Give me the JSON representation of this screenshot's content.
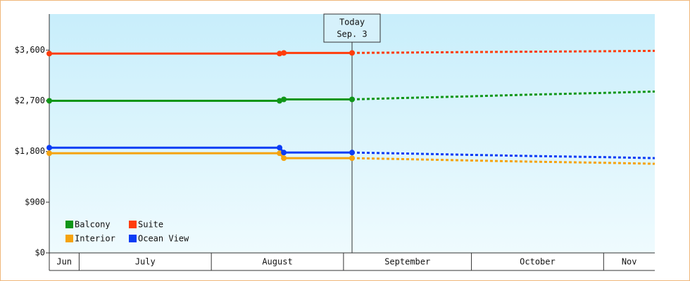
{
  "chart_data": {
    "type": "line",
    "x": [
      "Jun 24",
      "Aug 17",
      "Aug 18",
      "Sep 3"
    ],
    "forecast_x": [
      "Sep 3",
      "Sep 15",
      "Oct 1",
      "Oct 15",
      "Nov 1",
      "Nov 13"
    ],
    "xlim": [
      "Jun 24",
      "Nov 13"
    ],
    "months": [
      "Jun",
      "July",
      "August",
      "September",
      "October",
      "Nov"
    ],
    "ylim": [
      0,
      4240
    ],
    "yticks": [
      {
        "value": 0,
        "label": "$0"
      },
      {
        "value": 900,
        "label": "$900"
      },
      {
        "value": 1800,
        "label": "$1,800"
      },
      {
        "value": 2700,
        "label": "$2,700"
      },
      {
        "value": 3600,
        "label": "$3,600"
      }
    ],
    "annotation": {
      "lines": [
        "Today",
        "Sep. 3"
      ],
      "x": "Sep 3"
    },
    "series": [
      {
        "name": "Balcony",
        "color": "#109618",
        "values": [
          2700,
          2700,
          2725,
          2725
        ],
        "forecast": [
          2725,
          2750,
          2780,
          2810,
          2840,
          2865
        ]
      },
      {
        "name": "Suite",
        "color": "#ff3d0c",
        "values": [
          3538,
          3538,
          3550,
          3550
        ],
        "forecast": [
          3550,
          3556,
          3565,
          3572,
          3580,
          3587
        ]
      },
      {
        "name": "Interior",
        "color": "#f5a30f",
        "values": [
          1769,
          1769,
          1682,
          1682
        ],
        "forecast": [
          1682,
          1665,
          1640,
          1620,
          1600,
          1582
        ]
      },
      {
        "name": "Ocean View",
        "color": "#0b3cf5",
        "values": [
          1868,
          1868,
          1781,
          1781
        ],
        "forecast": [
          1781,
          1765,
          1740,
          1720,
          1700,
          1682
        ]
      }
    ]
  }
}
